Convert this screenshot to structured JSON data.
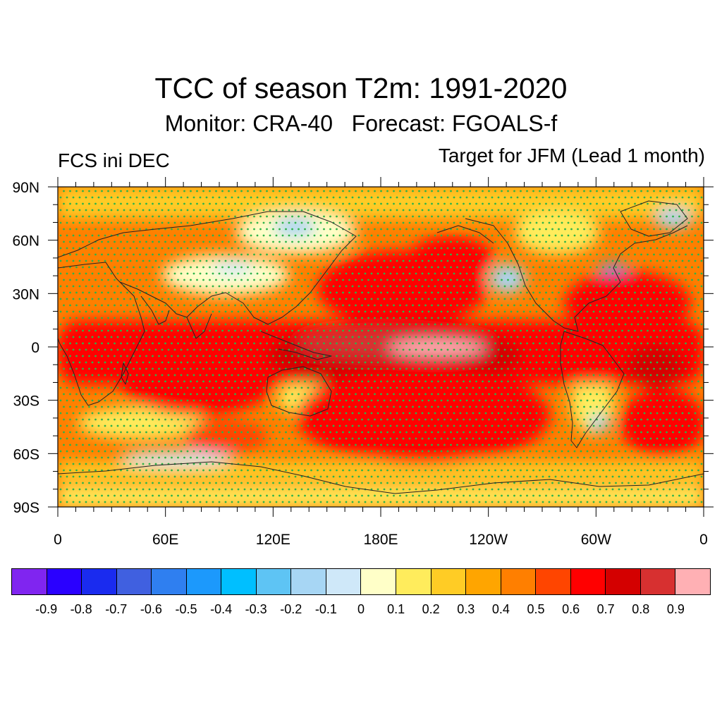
{
  "header": {
    "title": "TCC of season T2m: 1991-2020",
    "subtitle": "Monitor: CRA-40   Forecast: FGOALS-f",
    "left_label": "FCS ini DEC",
    "right_label": "Target for JFM (Lead 1 month)"
  },
  "map": {
    "lat_ticks": [
      "90N",
      "60N",
      "30N",
      "0",
      "30S",
      "60S",
      "90S"
    ],
    "lon_ticks": [
      "0",
      "60E",
      "120E",
      "180E",
      "120W",
      "60W",
      "0"
    ],
    "stipple_color": "#2db34a",
    "coastline_color": "#222222",
    "field_base_color": "#ff7f00"
  },
  "colorbar": {
    "colors": [
      "#8025f0",
      "#2a00ff",
      "#1a2bef",
      "#4060e0",
      "#2f7ff0",
      "#1c99fc",
      "#00bfff",
      "#5ec4f4",
      "#a7d6f4",
      "#cfe8f9",
      "#ffffc8",
      "#ffec5c",
      "#ffcc25",
      "#ffa500",
      "#ff7f00",
      "#ff4500",
      "#ff0000",
      "#d40000",
      "#d73030",
      "#ffb0b4"
    ],
    "labels": [
      "-0.9",
      "-0.8",
      "-0.7",
      "-0.6",
      "-0.5",
      "-0.4",
      "-0.3",
      "-0.2",
      "-0.1",
      "0",
      "0.1",
      "0.2",
      "0.3",
      "0.4",
      "0.5",
      "0.6",
      "0.7",
      "0.8",
      "0.9"
    ]
  }
}
